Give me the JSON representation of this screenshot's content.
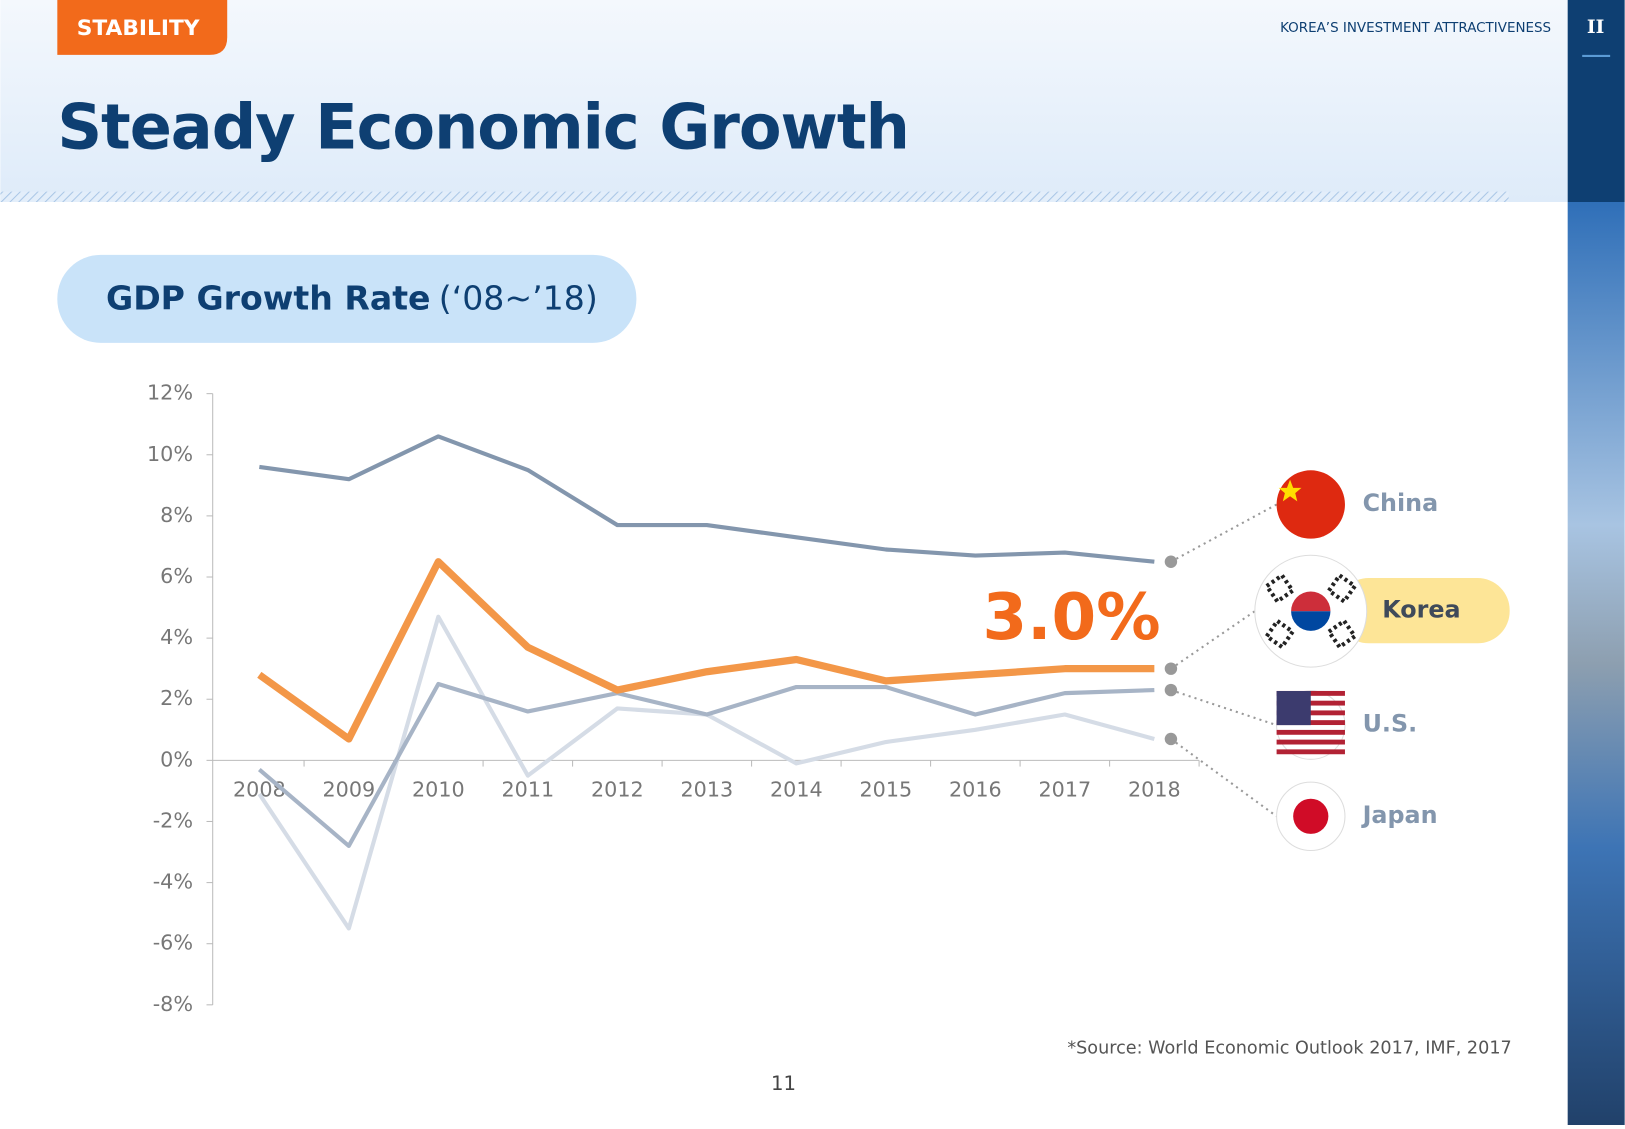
{
  "header": {
    "section": "STABILITY",
    "running_title": "KOREA’S INVESTMENT ATTRACTIVENESS",
    "chapter": "II",
    "title": "Steady Economic Growth"
  },
  "chart_data": {
    "type": "line",
    "title": "GDP Growth Rate",
    "subtitle": "(‘08~’18)",
    "categories": [
      "2008",
      "2009",
      "2010",
      "2011",
      "2012",
      "2013",
      "2014",
      "2015",
      "2016",
      "2017",
      "2018"
    ],
    "series": [
      {
        "name": "China",
        "color": "#8396ad",
        "values": [
          9.6,
          9.2,
          10.6,
          9.5,
          7.7,
          7.7,
          7.3,
          6.9,
          6.7,
          6.8,
          6.5
        ]
      },
      {
        "name": "Korea",
        "color": "#f39748",
        "values": [
          2.8,
          0.7,
          6.5,
          3.7,
          2.3,
          2.9,
          3.3,
          2.6,
          2.8,
          3.0,
          3.0
        ]
      },
      {
        "name": "U.S.",
        "color": "#a7b4c6",
        "values": [
          -0.3,
          -2.8,
          2.5,
          1.6,
          2.2,
          1.5,
          2.4,
          2.4,
          1.5,
          2.2,
          2.3
        ]
      },
      {
        "name": "Japan",
        "color": "#d5dce6",
        "values": [
          -1.1,
          -5.5,
          4.7,
          -0.5,
          1.7,
          1.5,
          -0.1,
          0.6,
          1.0,
          1.5,
          0.7
        ]
      }
    ],
    "annotations": [
      {
        "text": "3.0%"
      }
    ],
    "ylim": [
      -8,
      12
    ],
    "yticks": [
      {
        "value": -8,
        "label": "-8%"
      },
      {
        "value": -6,
        "label": "-6%"
      },
      {
        "value": -4,
        "label": "-4%"
      },
      {
        "value": -2,
        "label": "-2%"
      },
      {
        "value": 0,
        "label": "0%"
      },
      {
        "value": 2,
        "label": "2%"
      },
      {
        "value": 4,
        "label": "4%"
      },
      {
        "value": 6,
        "label": "6%"
      },
      {
        "value": 8,
        "label": "8%"
      },
      {
        "value": 10,
        "label": "10%"
      },
      {
        "value": 12,
        "label": "12%"
      }
    ],
    "source": "*Source: World Economic Outlook 2017, IMF, 2017"
  },
  "footer": {
    "page": "11"
  }
}
